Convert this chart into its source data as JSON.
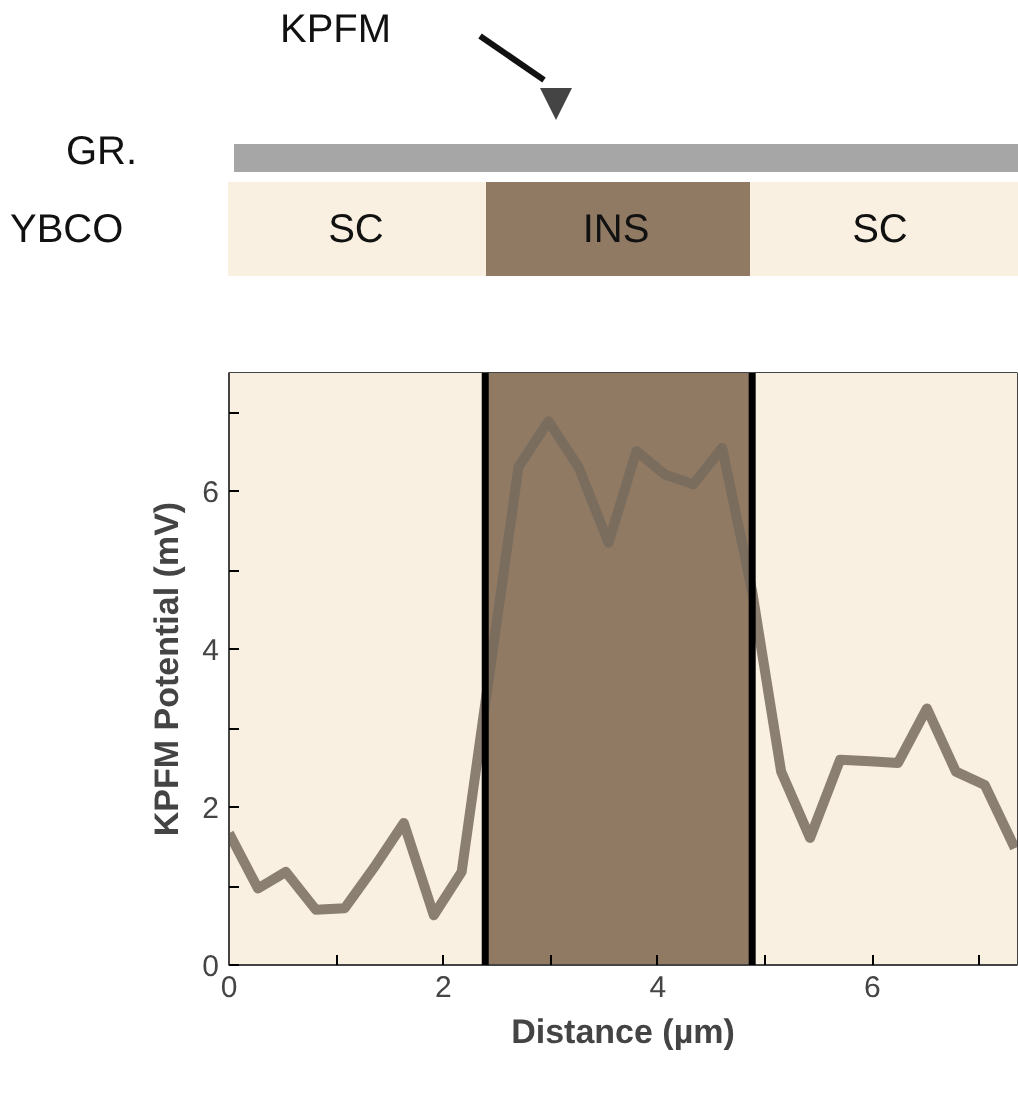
{
  "chart_data": {
    "type": "line",
    "xlabel": "Distance (µm)",
    "ylabel": "KPFM Potential (mV)",
    "annotations": [
      "KPFM",
      "GR.",
      "YBCO",
      "SC",
      "INS",
      "SC"
    ],
    "x": [
      0,
      0.27,
      0.53,
      0.81,
      1.08,
      1.35,
      1.63,
      1.91,
      2.17,
      2.7,
      2.98,
      3.26,
      3.54,
      3.8,
      4.07,
      4.33,
      4.6,
      4.88,
      5.15,
      5.42,
      5.7,
      5.98,
      6.24,
      6.51,
      6.78,
      7.05,
      7.33
    ],
    "series": [
      {
        "color": "#776b5d",
        "values": [
          1.67,
          0.97,
          1.18,
          0.7,
          0.72,
          1.23,
          1.8,
          0.63,
          1.18,
          6.31,
          6.89,
          6.31,
          5.35,
          6.51,
          6.21,
          6.09,
          6.55,
          4.73,
          2.45,
          1.61,
          2.6,
          2.58,
          2.56,
          3.25,
          2.45,
          2.28,
          1.48
        ]
      }
    ],
    "xlim": [
      0,
      7.35
    ],
    "ylim": [
      0,
      7.5
    ],
    "xticks": [
      0,
      {
        "value": 1,
        "label": null
      },
      2,
      {
        "value": 3,
        "label": null
      },
      4,
      {
        "value": 5,
        "label": null
      },
      6,
      {
        "value": 7,
        "label": null
      }
    ],
    "yticks": [
      0,
      {
        "value": 1,
        "label": null
      },
      2,
      {
        "value": 3,
        "label": null
      },
      4,
      {
        "value": 5,
        "label": null
      },
      6,
      {
        "value": 7,
        "label": null
      }
    ],
    "bands": [
      {
        "axis": "x",
        "from": 0,
        "to": 2.39,
        "color": "#faf0e1"
      },
      {
        "axis": "x",
        "from": 2.39,
        "to": 4.88,
        "color": "#917a64"
      },
      {
        "axis": "x",
        "from": 4.88,
        "to": 7.35,
        "color": "#faf0e1"
      }
    ],
    "ref_lines": [
      {
        "axis": "x",
        "value": 2.39,
        "color": "#000000"
      },
      {
        "axis": "x",
        "value": 4.88,
        "color": "#000000"
      }
    ],
    "marker": "none",
    "line_style": "solid"
  }
}
